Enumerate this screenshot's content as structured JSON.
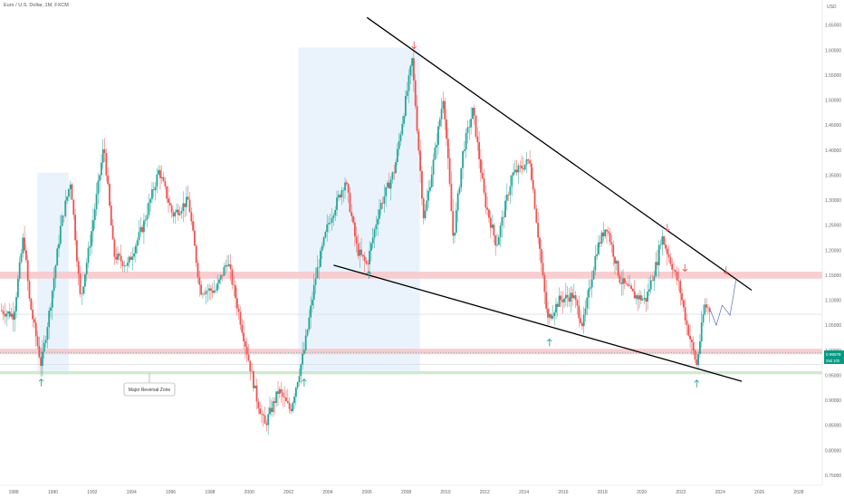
{
  "header": {
    "title": "Euro / U.S. Dollar, 1M, FXCM"
  },
  "price_axis": {
    "unit": "USD"
  },
  "annotation": {
    "label": "Major Reversal Zone"
  },
  "price_tags": {
    "last": "0.99578",
    "countdown": "29d 10h"
  },
  "colors": {
    "up": "#26a69a",
    "down": "#ef5350",
    "resistance_zone": "#f8c6c9",
    "support_zone": "#c8e6c9",
    "highlight": "#e3effb",
    "trendline": "#000000",
    "arrow_up": "#26a69a",
    "arrow_down": "#ef5350",
    "tag": "#089981"
  },
  "chart_data": {
    "type": "candlestick",
    "title": "Euro / U.S. Dollar, 1M, FXCM",
    "y_ticks": [
      "1.65000",
      "1.60000",
      "1.55000",
      "1.50000",
      "1.45000",
      "1.40000",
      "1.35000",
      "1.30000",
      "1.25000",
      "1.20000",
      "1.15000",
      "1.10000",
      "1.05000",
      "1.00000",
      "0.95000",
      "0.90000",
      "0.85000",
      "0.80000",
      "0.75000"
    ],
    "x_ticks": [
      "1988",
      "1990",
      "1992",
      "1994",
      "1996",
      "1998",
      "2000",
      "2002",
      "2004",
      "2006",
      "2008",
      "2010",
      "2012",
      "2014",
      "2016",
      "2018",
      "2020",
      "2022",
      "2024",
      "2026",
      "2028"
    ],
    "ylim": [
      0.73,
      1.7
    ],
    "xlim": [
      1987.3,
      2029.2
    ],
    "path_points": [
      [
        1987.3,
        1.08
      ],
      [
        1988.0,
        1.07
      ],
      [
        1988.5,
        1.23
      ],
      [
        1988.8,
        1.1
      ],
      [
        1989.4,
        0.97
      ],
      [
        1989.9,
        1.1
      ],
      [
        1990.4,
        1.25
      ],
      [
        1990.9,
        1.34
      ],
      [
        1991.4,
        1.1
      ],
      [
        1991.9,
        1.22
      ],
      [
        1992.6,
        1.41
      ],
      [
        1993.1,
        1.19
      ],
      [
        1993.8,
        1.17
      ],
      [
        1994.6,
        1.25
      ],
      [
        1995.4,
        1.36
      ],
      [
        1996.1,
        1.27
      ],
      [
        1996.9,
        1.3
      ],
      [
        1997.5,
        1.12
      ],
      [
        1998.3,
        1.12
      ],
      [
        1998.9,
        1.18
      ],
      [
        1999.6,
        1.05
      ],
      [
        2000.4,
        0.9
      ],
      [
        2000.8,
        0.85
      ],
      [
        2001.5,
        0.92
      ],
      [
        2002.1,
        0.88
      ],
      [
        2002.8,
        1.0
      ],
      [
        2003.4,
        1.15
      ],
      [
        2004.0,
        1.25
      ],
      [
        2004.9,
        1.34
      ],
      [
        2005.5,
        1.2
      ],
      [
        2006.0,
        1.17
      ],
      [
        2006.6,
        1.28
      ],
      [
        2007.4,
        1.36
      ],
      [
        2008.3,
        1.58
      ],
      [
        2008.9,
        1.26
      ],
      [
        2009.4,
        1.38
      ],
      [
        2009.9,
        1.51
      ],
      [
        2010.4,
        1.22
      ],
      [
        2010.9,
        1.4
      ],
      [
        2011.4,
        1.48
      ],
      [
        2012.0,
        1.3
      ],
      [
        2012.6,
        1.21
      ],
      [
        2013.4,
        1.35
      ],
      [
        2014.3,
        1.38
      ],
      [
        2015.2,
        1.06
      ],
      [
        2015.8,
        1.1
      ],
      [
        2016.5,
        1.11
      ],
      [
        2017.0,
        1.05
      ],
      [
        2017.7,
        1.2
      ],
      [
        2018.2,
        1.25
      ],
      [
        2018.9,
        1.14
      ],
      [
        2019.6,
        1.11
      ],
      [
        2020.2,
        1.1
      ],
      [
        2020.8,
        1.18
      ],
      [
        2021.0,
        1.23
      ],
      [
        2021.9,
        1.13
      ],
      [
        2022.3,
        1.05
      ],
      [
        2022.8,
        0.97
      ],
      [
        2023.2,
        1.09
      ],
      [
        2023.5,
        1.08
      ]
    ],
    "projection": [
      [
        2023.5,
        1.08
      ],
      [
        2023.8,
        1.05
      ],
      [
        2024.1,
        1.09
      ],
      [
        2024.5,
        1.07
      ],
      [
        2024.8,
        1.14
      ]
    ],
    "trendlines": [
      {
        "from": [
          2006.0,
          1.665
        ],
        "to": [
          2025.6,
          1.12
        ]
      },
      {
        "from": [
          2004.3,
          1.17
        ],
        "to": [
          2025.1,
          0.938
        ]
      }
    ],
    "zones": [
      {
        "kind": "resistance",
        "y_low": 1.143,
        "y_high": 1.157
      },
      {
        "kind": "resistance",
        "y_low": 0.992,
        "y_high": 1.003
      },
      {
        "kind": "support",
        "y_low": 0.952,
        "y_high": 0.958
      }
    ],
    "ref_lines": [
      1.072,
      0.972
    ],
    "highlight_ranges": [
      {
        "x_from": 1989.2,
        "x_to": 1990.8,
        "y_low": 0.952,
        "y_high": 1.355
      },
      {
        "x_from": 2002.5,
        "x_to": 2008.7,
        "y_low": 0.952,
        "y_high": 1.605
      }
    ],
    "arrows_up": [
      [
        1989.4,
        0.935
      ],
      [
        2002.8,
        0.935
      ],
      [
        2006.1,
        1.15
      ],
      [
        2015.3,
        1.015
      ],
      [
        2022.8,
        0.933
      ]
    ],
    "arrows_down": [
      [
        2008.4,
        1.61
      ],
      [
        2021.3,
        1.245
      ],
      [
        2022.2,
        1.165
      ],
      [
        2024.3,
        1.16
      ]
    ],
    "last_price": 0.99578
  }
}
